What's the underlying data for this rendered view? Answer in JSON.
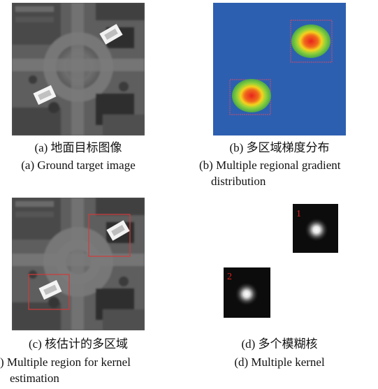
{
  "panels": [
    {
      "cn": "(a) 地面目标图像",
      "en": "(a) Ground target image"
    },
    {
      "cn": "(b) 多区域梯度分布",
      "en_line1": "(b) Multiple regional gradient",
      "en_line2": "distribution"
    },
    {
      "cn": "(c) 核估计的多区域",
      "en_line1": ") Multiple region for kernel",
      "en_line2": "estimation"
    },
    {
      "cn": "(d) 多个模糊核",
      "en": "(d) Multiple kernel"
    }
  ],
  "kernel_labels": [
    "1",
    "2"
  ],
  "colors": {
    "gradient_background": "#2d5fb0",
    "region_box": "#d24b6a",
    "estimation_box": "#d03a3a",
    "kernel_label": "#e02020"
  }
}
